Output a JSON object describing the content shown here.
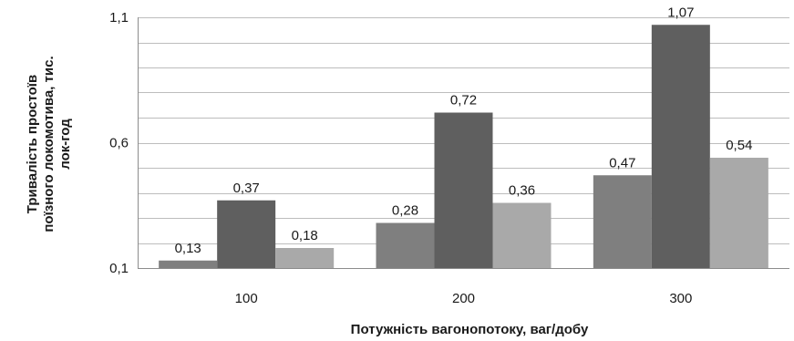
{
  "chart_data": {
    "type": "bar",
    "categories": [
      "100",
      "200",
      "300"
    ],
    "series": [
      {
        "values": [
          0.13,
          0.28,
          0.47
        ],
        "labels": [
          "0,13",
          "0,28",
          "0,47"
        ],
        "color": "#7f7f7f"
      },
      {
        "values": [
          0.37,
          0.72,
          1.07
        ],
        "labels": [
          "0,37",
          "0,72",
          "1,07"
        ],
        "color": "#5f5f5f"
      },
      {
        "values": [
          0.18,
          0.36,
          0.54
        ],
        "labels": [
          "0,18",
          "0,36",
          "0,54"
        ],
        "color": "#a9a9a9"
      }
    ],
    "ylim": [
      0.1,
      1.1
    ],
    "yticks": [
      0.1,
      0.6,
      1.1
    ],
    "ytick_labels": [
      "0,1",
      "0,6",
      "1,1"
    ],
    "minor_grid_step": 0.1,
    "xlabel": "Потужність вагонопотоку, ваг/добу",
    "ylabel_lines": [
      "Тривалість простоїв",
      "поїзного локомотива, тис.",
      "лок-год"
    ],
    "grid": true,
    "legend": "none"
  }
}
